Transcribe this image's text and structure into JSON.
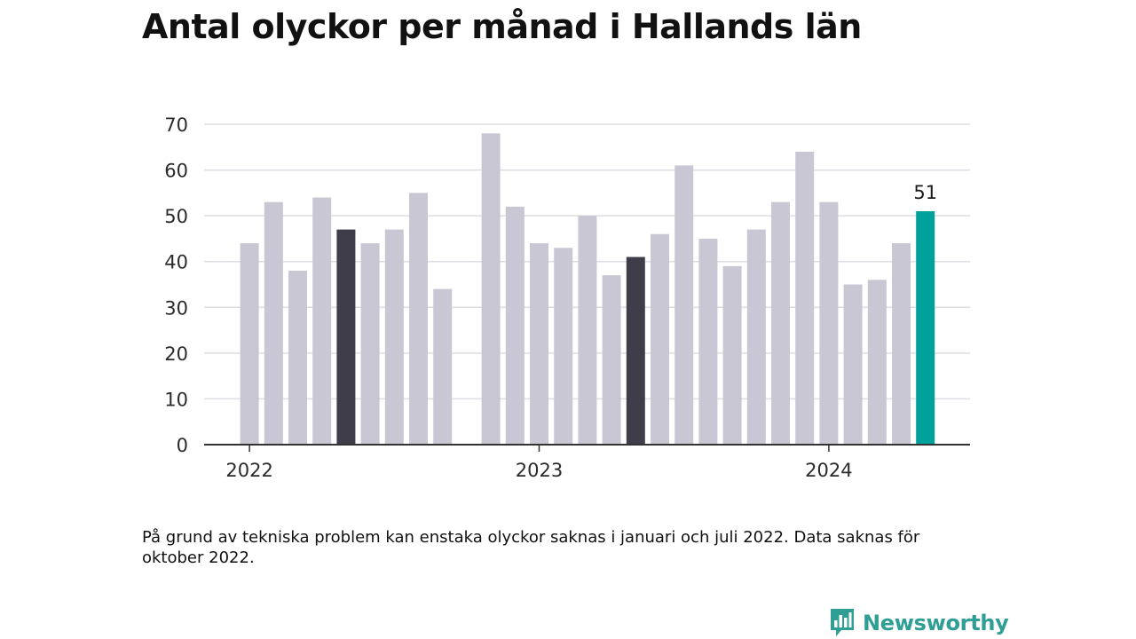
{
  "title": "Antal olyckor per månad i Hallands län",
  "footnote": "På grund av tekniska problem kan enstaka olyckor saknas i januari och juli 2022. Data saknas för oktober 2022.",
  "brand": {
    "name": "Newsworthy",
    "icon": "newsworthy-logo-icon",
    "color": "#2f9e95"
  },
  "chart_data": {
    "type": "bar",
    "title": "Antal olyckor per månad i Hallands län",
    "xlabel": "",
    "ylabel": "",
    "ylim": [
      0,
      70
    ],
    "yticks": [
      0,
      10,
      20,
      30,
      40,
      50,
      60,
      70
    ],
    "grid": true,
    "legend": "none",
    "categories": [
      "2022-01",
      "2022-02",
      "2022-03",
      "2022-04",
      "2022-05",
      "2022-06",
      "2022-07",
      "2022-08",
      "2022-09",
      "2022-10",
      "2022-11",
      "2022-12",
      "2023-01",
      "2023-02",
      "2023-03",
      "2023-04",
      "2023-05",
      "2023-06",
      "2023-07",
      "2023-08",
      "2023-09",
      "2023-10",
      "2023-11",
      "2023-12",
      "2024-01",
      "2024-02",
      "2024-03",
      "2024-04",
      "2024-05",
      "2024-06"
    ],
    "values": [
      44,
      53,
      38,
      54,
      47,
      44,
      47,
      55,
      34,
      null,
      68,
      52,
      44,
      43,
      50,
      37,
      41,
      46,
      61,
      45,
      39,
      47,
      53,
      64,
      53,
      35,
      36,
      44,
      51,
      null
    ],
    "x_tick_labels": [
      {
        "label": "2022",
        "category": "2022-01"
      },
      {
        "label": "2023",
        "category": "2023-01"
      },
      {
        "label": "2024",
        "category": "2024-01"
      }
    ],
    "highlight": {
      "2022-05": "#3f3d4a",
      "2023-05": "#3f3d4a",
      "2024-05": "#00a19a"
    },
    "colors": {
      "default": "#c8c7d3",
      "gridline": "#dedde3",
      "axis": "#333333"
    },
    "data_labels": [
      {
        "category": "2024-05",
        "text": "51"
      }
    ]
  }
}
